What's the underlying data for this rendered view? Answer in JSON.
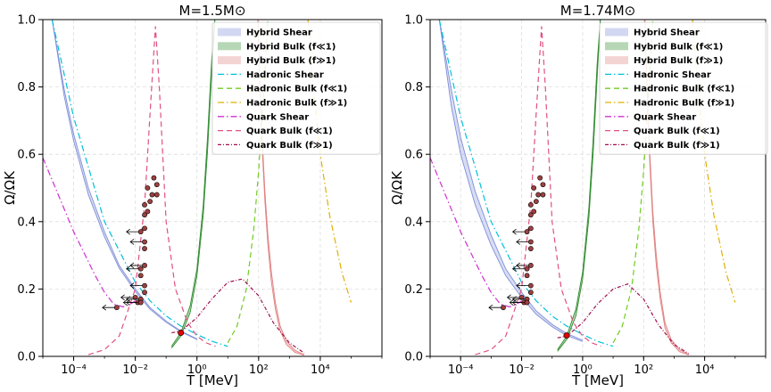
{
  "chart_data": [
    {
      "type": "line",
      "title": "M=1.5M⊙",
      "xlabel": "T [MeV]",
      "ylabel": "Ω/ΩK",
      "xscale": "log",
      "xlim": [
        1e-05,
        1000000
      ],
      "ylim": [
        0.0,
        1.0
      ],
      "xtick_labels": [
        "10⁻⁴",
        "10⁻²",
        "10⁰",
        "10²",
        "10⁴"
      ],
      "ytick_labels": [
        "0.0",
        "0.2",
        "0.4",
        "0.6",
        "0.8",
        "1.0"
      ],
      "grid": true,
      "legend_position": "top-right",
      "series": [
        {
          "name": "Hybrid Shear",
          "style": "band",
          "color": "#7f8fd8",
          "x": [
            2e-05,
            5e-05,
            0.0001,
            0.0003,
            0.001,
            0.003,
            0.01,
            0.03,
            0.1,
            0.3,
            1.0
          ],
          "y": [
            1.0,
            0.79,
            0.66,
            0.5,
            0.37,
            0.27,
            0.2,
            0.145,
            0.105,
            0.075,
            0.052
          ],
          "y_lower": [
            1.0,
            0.77,
            0.64,
            0.48,
            0.355,
            0.262,
            0.193,
            0.14,
            0.101,
            0.073,
            0.05
          ]
        },
        {
          "name": "Hybrid Bulk (f≪1)",
          "style": "band",
          "color": "#2e8b2e",
          "x": [
            0.15,
            0.3,
            0.6,
            1.0,
            1.6,
            2.2,
            3.0,
            3.8
          ],
          "y": [
            0.03,
            0.07,
            0.15,
            0.26,
            0.45,
            0.65,
            0.88,
            1.0
          ],
          "y_lower": [
            0.025,
            0.06,
            0.13,
            0.24,
            0.42,
            0.61,
            0.84,
            1.0
          ]
        },
        {
          "name": "Hybrid Bulk (f≫1)",
          "style": "band",
          "color": "#e08080",
          "x": [
            95,
            110,
            130,
            160,
            200,
            260,
            350,
            500,
            800,
            1500,
            3000
          ],
          "y": [
            1.0,
            0.82,
            0.65,
            0.49,
            0.36,
            0.25,
            0.16,
            0.09,
            0.045,
            0.018,
            0.005
          ],
          "y_lower": [
            1.0,
            0.8,
            0.62,
            0.46,
            0.33,
            0.22,
            0.14,
            0.075,
            0.035,
            0.012,
            0.003
          ]
        },
        {
          "name": "Hadronic Shear",
          "style": "dashdot",
          "color": "#00c0d8",
          "x": [
            2e-05,
            0.0001,
            0.001,
            0.01,
            0.03,
            0.1,
            0.3,
            1.0,
            3.0,
            10.0
          ],
          "y": [
            1.0,
            0.71,
            0.4,
            0.22,
            0.165,
            0.12,
            0.09,
            0.065,
            0.045,
            0.03
          ]
        },
        {
          "name": "Hadronic Bulk (f≪1)",
          "style": "dashed",
          "color": "#70cc20",
          "x": [
            10,
            20,
            40,
            70,
            100,
            150,
            200
          ],
          "y": [
            0.04,
            0.09,
            0.2,
            0.38,
            0.55,
            0.8,
            1.0
          ]
        },
        {
          "name": "Hadronic Bulk (f≫1)",
          "style": "dashdot",
          "color": "#e0b000",
          "x": [
            4000,
            6000,
            10000,
            20000,
            50000,
            100000
          ],
          "y": [
            1.0,
            0.8,
            0.6,
            0.42,
            0.25,
            0.16
          ]
        },
        {
          "name": "Quark Shear",
          "style": "dashdot",
          "color": "#d030d0",
          "x": [
            1e-05,
            0.0001,
            0.0005,
            0.001,
            0.002,
            0.004,
            0.007,
            0.01
          ],
          "y": [
            0.59,
            0.37,
            0.24,
            0.19,
            0.155,
            0.147,
            0.155,
            0.165
          ]
        },
        {
          "name": "Quark Bulk (f≪1)",
          "style": "dashed",
          "color": "#e05080",
          "x": [
            0.0003,
            0.001,
            0.003,
            0.01,
            0.02,
            0.03,
            0.045,
            0.06,
            0.1,
            0.2,
            0.5,
            1.0,
            2.0,
            4.0
          ],
          "y": [
            0.005,
            0.02,
            0.06,
            0.2,
            0.45,
            0.72,
            0.98,
            0.8,
            0.4,
            0.2,
            0.1,
            0.06,
            0.04,
            0.03
          ]
        },
        {
          "name": "Quark Bulk (f≫1)",
          "style": "dashdot-dense",
          "color": "#a01050",
          "x": [
            0.15,
            0.3,
            1.0,
            3.0,
            10.0,
            30.0,
            100.0,
            300.0,
            1000.0,
            3000.0
          ],
          "y": [
            0.07,
            0.075,
            0.115,
            0.17,
            0.22,
            0.23,
            0.18,
            0.1,
            0.04,
            0.01
          ]
        }
      ],
      "observed_points": {
        "marker": "circle",
        "color": "#a04040",
        "x": [
          0.04,
          0.05,
          0.025,
          0.035,
          0.05,
          0.03,
          0.02,
          0.025,
          0.02,
          0.02,
          0.015,
          0.02,
          0.02,
          0.02,
          0.015,
          0.015,
          0.02,
          0.02,
          0.01,
          0.015,
          0.012,
          0.015,
          0.0025
        ],
        "y": [
          0.53,
          0.51,
          0.5,
          0.48,
          0.48,
          0.46,
          0.45,
          0.43,
          0.42,
          0.38,
          0.37,
          0.34,
          0.32,
          0.27,
          0.26,
          0.24,
          0.21,
          0.19,
          0.175,
          0.17,
          0.16,
          0.16,
          0.145
        ],
        "upper_limit_arrows": [
          false,
          false,
          false,
          false,
          false,
          false,
          false,
          false,
          false,
          false,
          true,
          true,
          false,
          true,
          true,
          false,
          true,
          false,
          true,
          true,
          true,
          true,
          true
        ]
      },
      "highlight_point": {
        "x": 0.3,
        "y": 0.07,
        "color": "#e00000"
      }
    },
    {
      "type": "line",
      "title": "M=1.74M⊙",
      "xlabel": "T [MeV]",
      "ylabel": "Ω/ΩK",
      "xscale": "log",
      "xlim": [
        1e-05,
        1000000
      ],
      "ylim": [
        0.0,
        1.0
      ],
      "xtick_labels": [
        "10⁻⁴",
        "10⁻²",
        "10⁰",
        "10²",
        "10⁴"
      ],
      "ytick_labels": [
        "0.0",
        "0.2",
        "0.4",
        "0.6",
        "0.8",
        "1.0"
      ],
      "grid": true,
      "legend_position": "top-right",
      "series": [
        {
          "name": "Hybrid Shear",
          "style": "band",
          "color": "#7f8fd8",
          "x": [
            2e-05,
            5e-05,
            0.0001,
            0.0003,
            0.001,
            0.003,
            0.01,
            0.03,
            0.1,
            0.3,
            1.0
          ],
          "y": [
            1.0,
            0.79,
            0.65,
            0.49,
            0.36,
            0.26,
            0.19,
            0.135,
            0.095,
            0.068,
            0.048
          ],
          "y_lower": [
            1.0,
            0.74,
            0.6,
            0.45,
            0.33,
            0.24,
            0.175,
            0.125,
            0.088,
            0.062,
            0.044
          ]
        },
        {
          "name": "Hybrid Bulk (f≪1)",
          "style": "band",
          "color": "#2e8b2e",
          "x": [
            0.15,
            0.3,
            0.6,
            1.0,
            1.6,
            2.2,
            3.0,
            3.8
          ],
          "y": [
            0.02,
            0.06,
            0.14,
            0.25,
            0.44,
            0.64,
            0.87,
            1.0
          ],
          "y_lower": [
            0.015,
            0.05,
            0.12,
            0.23,
            0.41,
            0.6,
            0.83,
            1.0
          ]
        },
        {
          "name": "Hybrid Bulk (f≫1)",
          "style": "band",
          "color": "#e08080",
          "x": [
            110,
            130,
            160,
            200,
            260,
            350,
            500,
            800,
            1500,
            3000
          ],
          "y": [
            1.0,
            0.8,
            0.6,
            0.43,
            0.3,
            0.19,
            0.1,
            0.05,
            0.02,
            0.006
          ],
          "y_lower": [
            1.0,
            0.78,
            0.57,
            0.4,
            0.27,
            0.17,
            0.085,
            0.04,
            0.014,
            0.004
          ]
        },
        {
          "name": "Hadronic Shear",
          "style": "dashdot",
          "color": "#00c0d8",
          "x": [
            2e-05,
            0.0001,
            0.001,
            0.01,
            0.03,
            0.1,
            0.3,
            1.0,
            3.0,
            10.0
          ],
          "y": [
            1.0,
            0.71,
            0.4,
            0.22,
            0.165,
            0.12,
            0.09,
            0.065,
            0.045,
            0.03
          ]
        },
        {
          "name": "Hadronic Bulk (f≪1)",
          "style": "dashed",
          "color": "#70cc20",
          "x": [
            10,
            20,
            40,
            70,
            100,
            150,
            200
          ],
          "y": [
            0.04,
            0.09,
            0.2,
            0.38,
            0.55,
            0.8,
            1.0
          ]
        },
        {
          "name": "Hadronic Bulk (f≫1)",
          "style": "dashdot",
          "color": "#e0b000",
          "x": [
            4000,
            6000,
            10000,
            20000,
            50000,
            100000
          ],
          "y": [
            1.0,
            0.8,
            0.6,
            0.42,
            0.25,
            0.16
          ]
        },
        {
          "name": "Quark Shear",
          "style": "dashdot",
          "color": "#d030d0",
          "x": [
            1e-05,
            0.0001,
            0.0005,
            0.001,
            0.002,
            0.004,
            0.007,
            0.01
          ],
          "y": [
            0.59,
            0.37,
            0.24,
            0.19,
            0.155,
            0.147,
            0.155,
            0.165
          ]
        },
        {
          "name": "Quark Bulk (f≪1)",
          "style": "dashed",
          "color": "#e05080",
          "x": [
            0.0003,
            0.001,
            0.003,
            0.01,
            0.02,
            0.03,
            0.045,
            0.06,
            0.1,
            0.2,
            0.5,
            1.0,
            2.0,
            4.0
          ],
          "y": [
            0.005,
            0.02,
            0.06,
            0.2,
            0.45,
            0.72,
            0.98,
            0.8,
            0.4,
            0.2,
            0.1,
            0.06,
            0.04,
            0.03
          ]
        },
        {
          "name": "Quark Bulk (f≫1)",
          "style": "dashdot-dense",
          "color": "#a01050",
          "x": [
            0.15,
            0.3,
            1.0,
            3.0,
            10.0,
            30.0,
            100.0,
            300.0,
            1000.0,
            3000.0
          ],
          "y": [
            0.055,
            0.06,
            0.1,
            0.155,
            0.2,
            0.215,
            0.17,
            0.095,
            0.035,
            0.008
          ]
        }
      ],
      "observed_points": {
        "marker": "circle",
        "color": "#a04040",
        "x": [
          0.04,
          0.05,
          0.025,
          0.035,
          0.05,
          0.03,
          0.02,
          0.025,
          0.02,
          0.02,
          0.015,
          0.02,
          0.02,
          0.02,
          0.015,
          0.015,
          0.02,
          0.02,
          0.01,
          0.015,
          0.012,
          0.015,
          0.0025
        ],
        "y": [
          0.53,
          0.51,
          0.5,
          0.48,
          0.48,
          0.46,
          0.45,
          0.43,
          0.42,
          0.38,
          0.37,
          0.34,
          0.32,
          0.27,
          0.26,
          0.24,
          0.21,
          0.19,
          0.175,
          0.17,
          0.16,
          0.16,
          0.145
        ],
        "upper_limit_arrows": [
          false,
          false,
          false,
          false,
          false,
          false,
          false,
          false,
          false,
          false,
          true,
          true,
          false,
          true,
          true,
          false,
          true,
          false,
          true,
          true,
          true,
          true,
          true
        ]
      },
      "highlight_point": {
        "x": 0.3,
        "y": 0.062,
        "color": "#e00000"
      }
    }
  ]
}
